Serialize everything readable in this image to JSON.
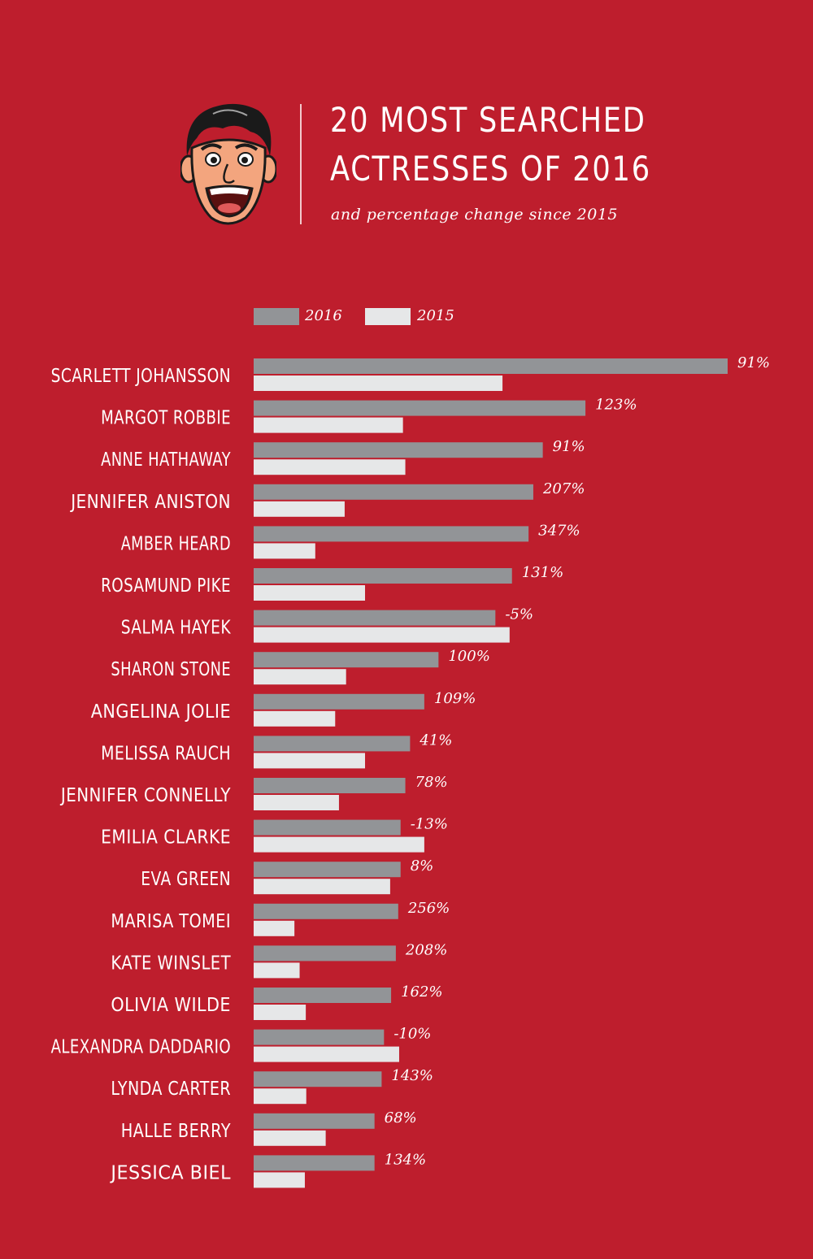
{
  "header": {
    "title_line1": "20 MOST SEARCHED",
    "title_line2": "ACTRESSES OF 2016",
    "subtitle": "and percentage change since 2015"
  },
  "colors": {
    "background": "#be1e2d",
    "bar_2016": "#929497",
    "bar_2015": "#e6e7e8",
    "text": "#ffffff"
  },
  "chart_data": {
    "type": "bar",
    "orientation": "horizontal",
    "title": "20 MOST SEARCHED ACTRESSES OF 2016",
    "subtitle": "and percentage change since 2015",
    "legend_position": "top-left",
    "grid": false,
    "axes_visible": false,
    "value_scale": "relative search volume (unlabeled)",
    "xlim": [
      0,
      100
    ],
    "categories": [
      "SCARLETT JOHANSSON",
      "MARGOT ROBBIE",
      "ANNE HATHAWAY",
      "JENNIFER ANISTON",
      "AMBER HEARD",
      "ROSAMUND PIKE",
      "SALMA HAYEK",
      "SHARON STONE",
      "ANGELINA JOLIE",
      "MELISSA RAUCH",
      "JENNIFER CONNELLY",
      "EMILIA CLARKE",
      "EVA GREEN",
      "MARISA TOMEI",
      "KATE WINSLET",
      "OLIVIA WILDE",
      "ALEXANDRA DADDARIO",
      "LYNDA CARTER",
      "HALLE BERRY",
      "JESSICA BIEL"
    ],
    "series": [
      {
        "name": "2016",
        "values": [
          100,
          70,
          61,
          59,
          58,
          54.5,
          51,
          39,
          36,
          33,
          32,
          31,
          31,
          30.5,
          30,
          29,
          27.5,
          27,
          25.5,
          25.5
        ]
      },
      {
        "name": "2015",
        "values": [
          52.5,
          31.5,
          32,
          19.2,
          13,
          23.5,
          54,
          19.5,
          17.2,
          23.5,
          18,
          36,
          28.8,
          8.6,
          9.7,
          11,
          30.7,
          11.1,
          15.2,
          10.8
        ]
      }
    ],
    "change_labels": [
      "91%",
      "123%",
      "91%",
      "207%",
      "347%",
      "131%",
      "-5%",
      "100%",
      "109%",
      "41%",
      "78%",
      "-13%",
      "8%",
      "256%",
      "208%",
      "162%",
      "-10%",
      "143%",
      "68%",
      "134%"
    ]
  }
}
